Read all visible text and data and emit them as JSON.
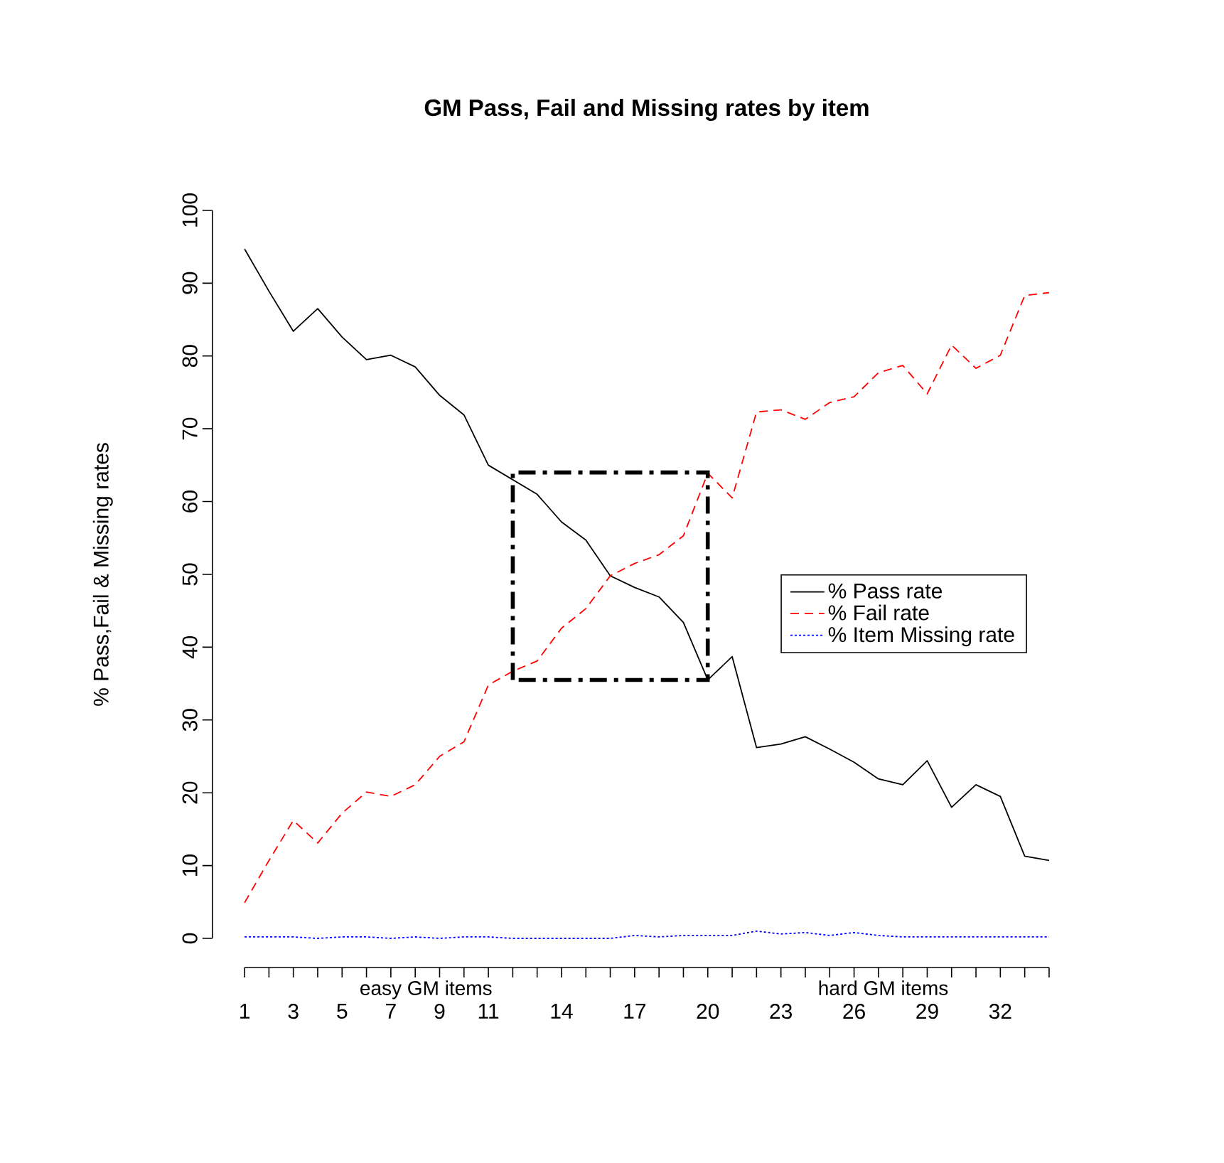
{
  "chart_data": {
    "type": "line",
    "title": "GM Pass, Fail and Missing rates by item",
    "ylabel": "% Pass,Fail & Missing rates",
    "annotations": [
      "easy GM items",
      "hard GM items"
    ],
    "x": [
      1,
      2,
      3,
      4,
      5,
      6,
      7,
      8,
      9,
      10,
      11,
      12,
      13,
      14,
      15,
      16,
      17,
      18,
      19,
      20,
      21,
      22,
      23,
      24,
      25,
      26,
      27,
      28,
      29,
      30,
      31,
      32,
      33,
      34
    ],
    "series": [
      {
        "name": "% Pass rate",
        "color": "#000000",
        "line_style": "solid",
        "values": [
          94.7,
          88.9,
          83.4,
          86.5,
          82.6,
          79.5,
          80.1,
          78.5,
          74.6,
          71.9,
          65,
          63,
          61,
          57.2,
          54.7,
          49.8,
          48.2,
          46.9,
          43.4,
          35.5,
          38.7,
          26.2,
          26.7,
          27.7,
          26,
          24.2,
          21.9,
          21.1,
          24.4,
          18,
          21.1,
          19.5,
          11.3,
          10.7
        ]
      },
      {
        "name": "% Fail rate",
        "color": "#ff0000",
        "line_style": "dashed",
        "values": [
          4.9,
          10.7,
          16.2,
          13.1,
          17.2,
          20.1,
          19.5,
          21.1,
          25,
          27,
          34.8,
          36.7,
          38.1,
          42.6,
          45.3,
          49.8,
          51.5,
          52.7,
          55.3,
          63.9,
          60.5,
          72.3,
          72.6,
          71.3,
          73.6,
          74.4,
          77.7,
          78.7,
          74.8,
          81.5,
          78.3,
          80.1,
          88.3,
          88.7
        ]
      },
      {
        "name": "% Item Missing rate",
        "color": "#0000ff",
        "line_style": "dotted",
        "values": [
          0.2,
          0.2,
          0.2,
          0,
          0.2,
          0.2,
          0,
          0.2,
          0,
          0.2,
          0.2,
          0,
          0,
          0,
          0,
          0,
          0.4,
          0.2,
          0.4,
          0.4,
          0.4,
          1,
          0.6,
          0.8,
          0.4,
          0.8,
          0.4,
          0.2,
          0.2,
          0.2,
          0.2,
          0.2,
          0.2,
          0.2
        ]
      }
    ],
    "xlim": [
      1,
      34
    ],
    "ylim": [
      0,
      100
    ],
    "xticks": [
      1,
      3,
      5,
      7,
      9,
      11,
      14,
      17,
      20,
      23,
      26,
      29,
      32
    ],
    "yticks": [
      0,
      10,
      20,
      30,
      40,
      50,
      60,
      70,
      80,
      90,
      100
    ],
    "legend": "right"
  }
}
